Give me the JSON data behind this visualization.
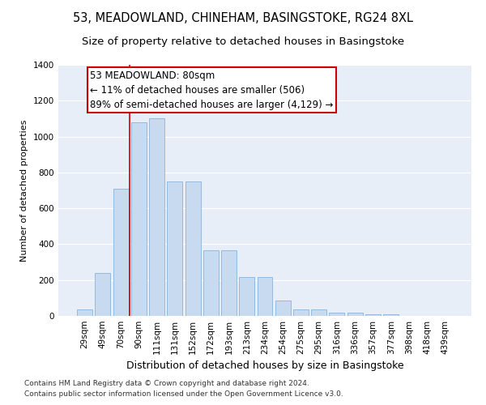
{
  "title": "53, MEADOWLAND, CHINEHAM, BASINGSTOKE, RG24 8XL",
  "subtitle": "Size of property relative to detached houses in Basingstoke",
  "xlabel": "Distribution of detached houses by size in Basingstoke",
  "ylabel": "Number of detached properties",
  "categories": [
    "29sqm",
    "49sqm",
    "70sqm",
    "90sqm",
    "111sqm",
    "131sqm",
    "152sqm",
    "172sqm",
    "193sqm",
    "213sqm",
    "234sqm",
    "254sqm",
    "275sqm",
    "295sqm",
    "316sqm",
    "336sqm",
    "357sqm",
    "377sqm",
    "398sqm",
    "418sqm",
    "439sqm"
  ],
  "values": [
    35,
    240,
    710,
    1080,
    1100,
    750,
    750,
    365,
    365,
    215,
    215,
    85,
    35,
    35,
    20,
    20,
    8,
    8,
    0,
    0,
    0
  ],
  "bar_color": "#c8daf0",
  "bar_edge_color": "#8ab4d8",
  "vline_color": "#cc0000",
  "vline_x_index": 2.5,
  "annotation_text": "53 MEADOWLAND: 80sqm\n← 11% of detached houses are smaller (506)\n89% of semi-detached houses are larger (4,129) →",
  "annotation_box_facecolor": "#ffffff",
  "annotation_box_edgecolor": "#cc0000",
  "ylim": [
    0,
    1400
  ],
  "yticks": [
    0,
    200,
    400,
    600,
    800,
    1000,
    1200,
    1400
  ],
  "footnote1": "Contains HM Land Registry data © Crown copyright and database right 2024.",
  "footnote2": "Contains public sector information licensed under the Open Government Licence v3.0.",
  "bg_color": "#e8eef8",
  "grid_color": "#ffffff",
  "title_fontsize": 10.5,
  "subtitle_fontsize": 9.5,
  "xlabel_fontsize": 9,
  "ylabel_fontsize": 8,
  "tick_fontsize": 7.5,
  "annotation_fontsize": 8.5,
  "footnote_fontsize": 6.5
}
